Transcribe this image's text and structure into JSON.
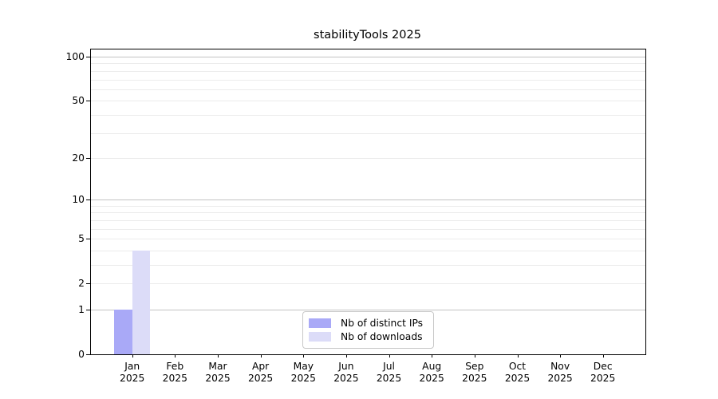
{
  "chart_data": {
    "type": "bar",
    "title": "stabilityTools 2025",
    "x_categories": [
      "Jan",
      "Feb",
      "Mar",
      "Apr",
      "May",
      "Jun",
      "Jul",
      "Aug",
      "Sep",
      "Oct",
      "Nov",
      "Dec"
    ],
    "x_year_label": "2025",
    "series": [
      {
        "name": "Nb of distinct IPs",
        "color": "#a9a9f7",
        "values": [
          1,
          0,
          0,
          0,
          0,
          0,
          0,
          0,
          0,
          0,
          0,
          0
        ]
      },
      {
        "name": "Nb of downloads",
        "color": "#dcdcf8",
        "values": [
          4,
          0,
          0,
          0,
          0,
          0,
          0,
          0,
          0,
          0,
          0,
          0
        ]
      }
    ],
    "yscale": "log1p",
    "ylim": [
      0,
      100
    ],
    "ytick_labels": [
      0,
      1,
      2,
      5,
      10,
      20,
      50,
      100
    ],
    "minor_gridlines": [
      2,
      3,
      4,
      5,
      6,
      7,
      8,
      9,
      20,
      30,
      40,
      50,
      60,
      70,
      80,
      90
    ],
    "major_gridlines": [
      1,
      10,
      100
    ],
    "grid": true,
    "legend_position": "inside-bottom-center",
    "colors": {
      "grid_minor": "#ebebeb",
      "grid_major": "#c3c3c3",
      "axis": "#000000",
      "background": "#ffffff",
      "legend_border": "#c8c8c8"
    }
  }
}
